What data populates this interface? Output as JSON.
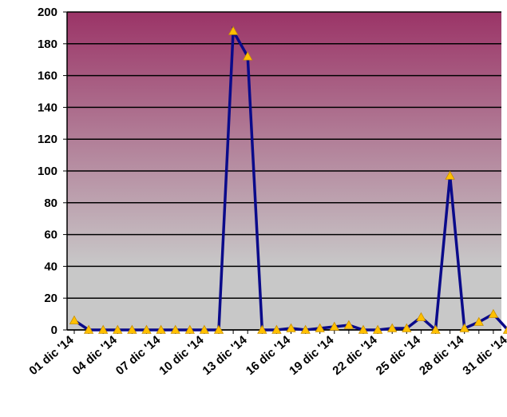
{
  "chart_data": {
    "type": "line",
    "title": "",
    "xlabel": "",
    "ylabel": "",
    "ylim": [
      0,
      200
    ],
    "y_ticks": [
      0,
      20,
      40,
      60,
      80,
      100,
      120,
      140,
      160,
      180,
      200
    ],
    "grid": true,
    "legend": "none",
    "x": [
      "01 dic 14",
      "02 dic 14",
      "03 dic 14",
      "04 dic 14",
      "05 dic 14",
      "06 dic 14",
      "07 dic 14",
      "08 dic 14",
      "09 dic 14",
      "10 dic 14",
      "11 dic 14",
      "12 dic 14",
      "13 dic 14",
      "14 dic 14",
      "15 dic 14",
      "16 dic 14",
      "17 dic 14",
      "18 dic 14",
      "19 dic 14",
      "20 dic 14",
      "21 dic 14",
      "22 dic 14",
      "23 dic 14",
      "24 dic 14",
      "25 dic 14",
      "26 dic 14",
      "27 dic 14",
      "28 dic 14",
      "29 dic 14",
      "30 dic 14",
      "31 dic 14"
    ],
    "x_tick_labels": [
      "01 dic '14",
      "04 dic '14",
      "07 dic '14",
      "10 dic '14",
      "13 dic '14",
      "16 dic '14",
      "19 dic '14",
      "22 dic '14",
      "25 dic '14",
      "28 dic '14",
      "31 dic '14"
    ],
    "x_tick_every": 3,
    "series": [
      {
        "values": [
          6,
          0,
          0,
          0,
          0,
          0,
          0,
          0,
          0,
          0,
          0,
          188,
          172,
          0,
          0,
          1,
          0,
          1,
          2,
          3,
          0,
          0,
          1,
          1,
          8,
          0,
          97,
          1,
          5,
          10,
          0
        ]
      }
    ],
    "colors": {
      "line": "#0a0a8a",
      "marker": "#ffc000",
      "marker_stroke": "#c89000",
      "bg_top": "#9b3467",
      "bg_bottom": "#c8c8c8",
      "grid": "#000000"
    }
  }
}
